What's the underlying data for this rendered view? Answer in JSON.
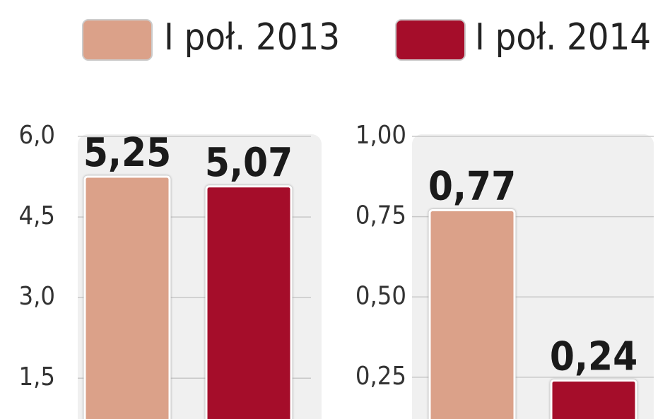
{
  "chart_data": [
    {
      "type": "bar",
      "grid": true,
      "ylim": [
        0.74,
        6.0
      ],
      "yticks": [
        {
          "value": 1.5,
          "label": "1,5"
        },
        {
          "value": 3,
          "label": "3,0"
        },
        {
          "value": 4.5,
          "label": "4,5"
        },
        {
          "value": 6,
          "label": "6,0"
        }
      ],
      "series": [
        {
          "name": "I poł. 2013",
          "color": "#dba189",
          "values": [
            5.25
          ],
          "value_labels": [
            "5,25"
          ]
        },
        {
          "name": "I poł. 2014",
          "color": "#a50d2a",
          "values": [
            5.07
          ],
          "value_labels": [
            "5,07"
          ]
        }
      ]
    },
    {
      "type": "bar",
      "grid": true,
      "ylim": [
        0.12,
        1.0
      ],
      "yticks": [
        {
          "value": 0.25,
          "label": "0,25"
        },
        {
          "value": 0.5,
          "label": "0,50"
        },
        {
          "value": 0.75,
          "label": "0,75"
        },
        {
          "value": 1,
          "label": "1,00"
        }
      ],
      "series": [
        {
          "color": "#dba189",
          "values": [
            0.77
          ],
          "value_labels": [
            "0,77"
          ]
        },
        {
          "color": "#a50d2a",
          "values": [
            0.24
          ],
          "value_labels": [
            "0,24"
          ]
        }
      ]
    }
  ]
}
